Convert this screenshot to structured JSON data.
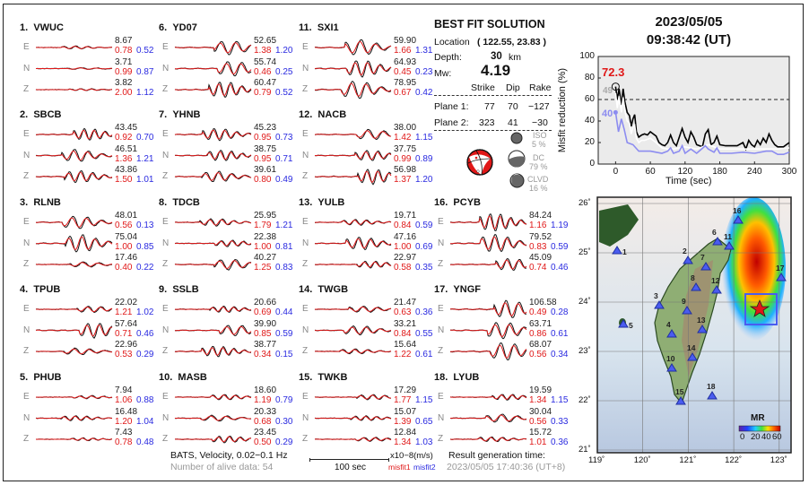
{
  "stations": [
    {
      "num": "1.",
      "name": "VWUC",
      "comps": [
        {
          "label": "E",
          "amp": "8.67",
          "m1": "0.78",
          "m2": "0.52"
        },
        {
          "label": "N",
          "amp": "3.71",
          "m1": "0.99",
          "m2": "0.87"
        },
        {
          "label": "Z",
          "amp": "3.82",
          "m1": "2.00",
          "m2": "1.12"
        }
      ]
    },
    {
      "num": "2.",
      "name": "SBCB",
      "comps": [
        {
          "label": "E",
          "amp": "43.45",
          "m1": "0.92",
          "m2": "0.70"
        },
        {
          "label": "N",
          "amp": "46.51",
          "m1": "1.36",
          "m2": "1.21"
        },
        {
          "label": "Z",
          "amp": "43.86",
          "m1": "1.50",
          "m2": "1.01"
        }
      ]
    },
    {
      "num": "3.",
      "name": "RLNB",
      "comps": [
        {
          "label": "E",
          "amp": "48.01",
          "m1": "0.56",
          "m2": "0.13"
        },
        {
          "label": "N",
          "amp": "75.04",
          "m1": "1.00",
          "m2": "0.85"
        },
        {
          "label": "Z",
          "amp": "17.46",
          "m1": "0.40",
          "m2": "0.22"
        }
      ]
    },
    {
      "num": "4.",
      "name": "TPUB",
      "comps": [
        {
          "label": "E",
          "amp": "22.02",
          "m1": "1.21",
          "m2": "1.02"
        },
        {
          "label": "N",
          "amp": "57.64",
          "m1": "0.71",
          "m2": "0.46"
        },
        {
          "label": "Z",
          "amp": "22.96",
          "m1": "0.53",
          "m2": "0.29"
        }
      ]
    },
    {
      "num": "5.",
      "name": "PHUB",
      "comps": [
        {
          "label": "E",
          "amp": "7.94",
          "m1": "1.06",
          "m2": "0.88"
        },
        {
          "label": "N",
          "amp": "16.48",
          "m1": "1.20",
          "m2": "1.04"
        },
        {
          "label": "Z",
          "amp": "7.43",
          "m1": "0.78",
          "m2": "0.48"
        }
      ]
    },
    {
      "num": "6.",
      "name": "YD07",
      "comps": [
        {
          "label": "E",
          "amp": "52.65",
          "m1": "1.38",
          "m2": "1.20"
        },
        {
          "label": "N",
          "amp": "55.74",
          "m1": "0.46",
          "m2": "0.25"
        },
        {
          "label": "Z",
          "amp": "60.47",
          "m1": "0.79",
          "m2": "0.52"
        }
      ]
    },
    {
      "num": "7.",
      "name": "YHNB",
      "comps": [
        {
          "label": "E",
          "amp": "45.23",
          "m1": "0.95",
          "m2": "0.73"
        },
        {
          "label": "N",
          "amp": "38.75",
          "m1": "0.95",
          "m2": "0.71"
        },
        {
          "label": "Z",
          "amp": "39.61",
          "m1": "0.80",
          "m2": "0.49"
        }
      ]
    },
    {
      "num": "8.",
      "name": "TDCB",
      "comps": [
        {
          "label": "E",
          "amp": "25.95",
          "m1": "1.79",
          "m2": "1.21"
        },
        {
          "label": "N",
          "amp": "22.38",
          "m1": "1.00",
          "m2": "0.81"
        },
        {
          "label": "Z",
          "amp": "40.27",
          "m1": "1.25",
          "m2": "0.83"
        }
      ]
    },
    {
      "num": "9.",
      "name": "SSLB",
      "comps": [
        {
          "label": "E",
          "amp": "20.66",
          "m1": "0.69",
          "m2": "0.44"
        },
        {
          "label": "N",
          "amp": "39.90",
          "m1": "0.85",
          "m2": "0.59"
        },
        {
          "label": "Z",
          "amp": "38.77",
          "m1": "0.34",
          "m2": "0.15"
        }
      ]
    },
    {
      "num": "10.",
      "name": "MASB",
      "comps": [
        {
          "label": "E",
          "amp": "18.60",
          "m1": "1.19",
          "m2": "0.79"
        },
        {
          "label": "N",
          "amp": "20.33",
          "m1": "0.68",
          "m2": "0.30"
        },
        {
          "label": "Z",
          "amp": "23.45",
          "m1": "0.50",
          "m2": "0.29"
        }
      ]
    },
    {
      "num": "11.",
      "name": "SXI1",
      "comps": [
        {
          "label": "E",
          "amp": "59.90",
          "m1": "1.66",
          "m2": "1.31"
        },
        {
          "label": "N",
          "amp": "64.93",
          "m1": "0.45",
          "m2": "0.23"
        },
        {
          "label": "Z",
          "amp": "78.95",
          "m1": "0.67",
          "m2": "0.42"
        }
      ]
    },
    {
      "num": "12.",
      "name": "NACB",
      "comps": [
        {
          "label": "E",
          "amp": "38.00",
          "m1": "1.42",
          "m2": "1.15"
        },
        {
          "label": "N",
          "amp": "37.75",
          "m1": "0.99",
          "m2": "0.89"
        },
        {
          "label": "Z",
          "amp": "56.98",
          "m1": "1.37",
          "m2": "1.20"
        }
      ]
    },
    {
      "num": "13.",
      "name": "YULB",
      "comps": [
        {
          "label": "E",
          "amp": "19.71",
          "m1": "0.84",
          "m2": "0.59"
        },
        {
          "label": "N",
          "amp": "47.16",
          "m1": "1.00",
          "m2": "0.69"
        },
        {
          "label": "Z",
          "amp": "22.97",
          "m1": "0.58",
          "m2": "0.35"
        }
      ]
    },
    {
      "num": "14.",
      "name": "TWGB",
      "comps": [
        {
          "label": "E",
          "amp": "21.47",
          "m1": "0.63",
          "m2": "0.36"
        },
        {
          "label": "N",
          "amp": "33.21",
          "m1": "0.84",
          "m2": "0.55"
        },
        {
          "label": "Z",
          "amp": "15.64",
          "m1": "1.22",
          "m2": "0.61"
        }
      ]
    },
    {
      "num": "15.",
      "name": "TWKB",
      "comps": [
        {
          "label": "E",
          "amp": "17.29",
          "m1": "1.77",
          "m2": "1.15"
        },
        {
          "label": "N",
          "amp": "15.07",
          "m1": "1.39",
          "m2": "0.65"
        },
        {
          "label": "Z",
          "amp": "12.84",
          "m1": "1.34",
          "m2": "1.03"
        }
      ]
    },
    {
      "num": "16.",
      "name": "PCYB",
      "comps": [
        {
          "label": "E",
          "amp": "84.24",
          "m1": "1.16",
          "m2": "1.19"
        },
        {
          "label": "N",
          "amp": "79.52",
          "m1": "0.83",
          "m2": "0.59"
        },
        {
          "label": "Z",
          "amp": "45.09",
          "m1": "0.74",
          "m2": "0.46"
        }
      ]
    },
    {
      "num": "17.",
      "name": "YNGF",
      "comps": [
        {
          "label": "E",
          "amp": "106.58",
          "m1": "0.49",
          "m2": "0.28"
        },
        {
          "label": "N",
          "amp": "63.71",
          "m1": "0.86",
          "m2": "0.61"
        },
        {
          "label": "Z",
          "amp": "68.07",
          "m1": "0.56",
          "m2": "0.34"
        }
      ]
    },
    {
      "num": "18.",
      "name": "LYUB",
      "comps": [
        {
          "label": "E",
          "amp": "19.59",
          "m1": "1.34",
          "m2": "1.15"
        },
        {
          "label": "N",
          "amp": "30.04",
          "m1": "0.56",
          "m2": "0.33"
        },
        {
          "label": "Z",
          "amp": "15.72",
          "m1": "1.01",
          "m2": "0.36"
        }
      ]
    }
  ],
  "solution": {
    "title": "BEST FIT SOLUTION",
    "location_label": "Location",
    "location_value": "( 122.55,  23.83 )",
    "depth_label": "Depth:",
    "depth_value": "30",
    "depth_unit": "km",
    "mw_label": "Mw:",
    "mw_value": "4.19",
    "headers": [
      "Strike",
      "Dip",
      "Rake"
    ],
    "planes": [
      {
        "label": "Plane 1:",
        "strike": "77",
        "dip": "70",
        "rake": "−127"
      },
      {
        "label": "Plane 2:",
        "strike": "323",
        "dip": "41",
        "rake": "−30"
      }
    ],
    "iso": {
      "label": "ISO",
      "pct": "5 %"
    },
    "dc": {
      "label": "DC",
      "pct": "79 %"
    },
    "clvd": {
      "label": "CLVD",
      "pct": "16 %"
    }
  },
  "footer": {
    "bats": "BATS, Velocity, 0.02−0.1 Hz",
    "alive": "Number of alive data: 54",
    "units": "x10−8(m/s)",
    "scale": "100 sec",
    "misfit1": "misfit1",
    "misfit2": "misfit2",
    "gen_label": "Result generation time:",
    "gen_time": "2023/05/05 17:40:36 (UT+8)"
  },
  "header": {
    "date": "2023/05/05",
    "time": "09:38:42  (UT)"
  },
  "chart_data": {
    "type": "line",
    "ylabel": "Misfit reduction (%)",
    "xlabel": "Time (sec)",
    "xlim": [
      -30,
      300
    ],
    "ylim": [
      0,
      100
    ],
    "xticks": [
      "0",
      "60",
      "120",
      "180",
      "240",
      "300"
    ],
    "yticks": [
      "0",
      "20",
      "40",
      "60",
      "80",
      "100"
    ],
    "threshold": 60,
    "best_label": "72.3",
    "gray_label": "49",
    "blue_label": "40",
    "colors": {
      "black": "#000000",
      "white": "#ffffff",
      "blue": "#8c8cf0",
      "best": "#e01818",
      "bg": "#ebebeb"
    },
    "series": [
      {
        "color": "black",
        "x": [
          0,
          3,
          6,
          10,
          13,
          16,
          20,
          24,
          27,
          30,
          33,
          36,
          40,
          45,
          50,
          55,
          60,
          65,
          70,
          75,
          80,
          85,
          90,
          95,
          100,
          105,
          110,
          115,
          120,
          125,
          130,
          135,
          140,
          150,
          155,
          160,
          165,
          170,
          175,
          180,
          190,
          200,
          210,
          220,
          225,
          230,
          235,
          240,
          245,
          250,
          255,
          260,
          265,
          270,
          275,
          280,
          290,
          300
        ],
        "y": [
          72,
          60,
          70,
          55,
          70,
          58,
          48,
          45,
          35,
          42,
          46,
          30,
          25,
          27,
          28,
          27,
          30,
          28,
          26,
          20,
          18,
          17,
          20,
          27,
          20,
          17,
          25,
          33,
          25,
          20,
          30,
          25,
          18,
          16,
          28,
          32,
          18,
          20,
          26,
          18,
          17,
          17,
          17,
          20,
          14,
          22,
          18,
          16,
          22,
          18,
          24,
          20,
          28,
          22,
          18,
          16,
          16,
          20
        ]
      },
      {
        "color": "white",
        "x": [
          0,
          3,
          6,
          10,
          13,
          16,
          20,
          24,
          27,
          30,
          33,
          36,
          40,
          45,
          50,
          55,
          60,
          65,
          70,
          80,
          90,
          100,
          120,
          140,
          160,
          180,
          200,
          240,
          280,
          300
        ],
        "y": [
          66,
          52,
          63,
          48,
          62,
          50,
          40,
          38,
          28,
          34,
          36,
          24,
          20,
          22,
          22,
          23,
          24,
          22,
          20,
          15,
          14,
          14,
          16,
          14,
          18,
          14,
          14,
          14,
          14,
          15
        ]
      },
      {
        "color": "blue",
        "x": [
          0,
          5,
          10,
          15,
          20,
          30,
          40,
          50,
          60,
          70,
          80,
          90,
          95,
          100,
          110,
          115,
          120,
          130,
          140,
          155,
          160,
          170,
          175,
          180,
          200,
          220,
          240,
          260,
          270,
          280,
          290,
          300
        ],
        "y": [
          48,
          30,
          42,
          32,
          20,
          18,
          12,
          12,
          12,
          11,
          10,
          12,
          15,
          10,
          12,
          17,
          10,
          14,
          10,
          17,
          14,
          11,
          15,
          10,
          10,
          11,
          10,
          12,
          12,
          9,
          9,
          11
        ]
      }
    ]
  },
  "map": {
    "lon_ticks": [
      "119˚",
      "120˚",
      "121˚",
      "122˚",
      "123˚"
    ],
    "lat_ticks": [
      "26˚",
      "25˚",
      "24˚",
      "23˚",
      "22˚",
      "21˚"
    ],
    "station_labels": [
      "1",
      "2",
      "3",
      "4",
      "5",
      "6",
      "7",
      "8",
      "9",
      "10",
      "11",
      "12",
      "13",
      "14",
      "15",
      "16",
      "17",
      "18"
    ],
    "colorbar_title": "MR",
    "colorbar_ticks": [
      "0",
      "20",
      "40",
      "60"
    ],
    "station_color": "#4a5cf0",
    "epicenter_color": "#e01818"
  }
}
